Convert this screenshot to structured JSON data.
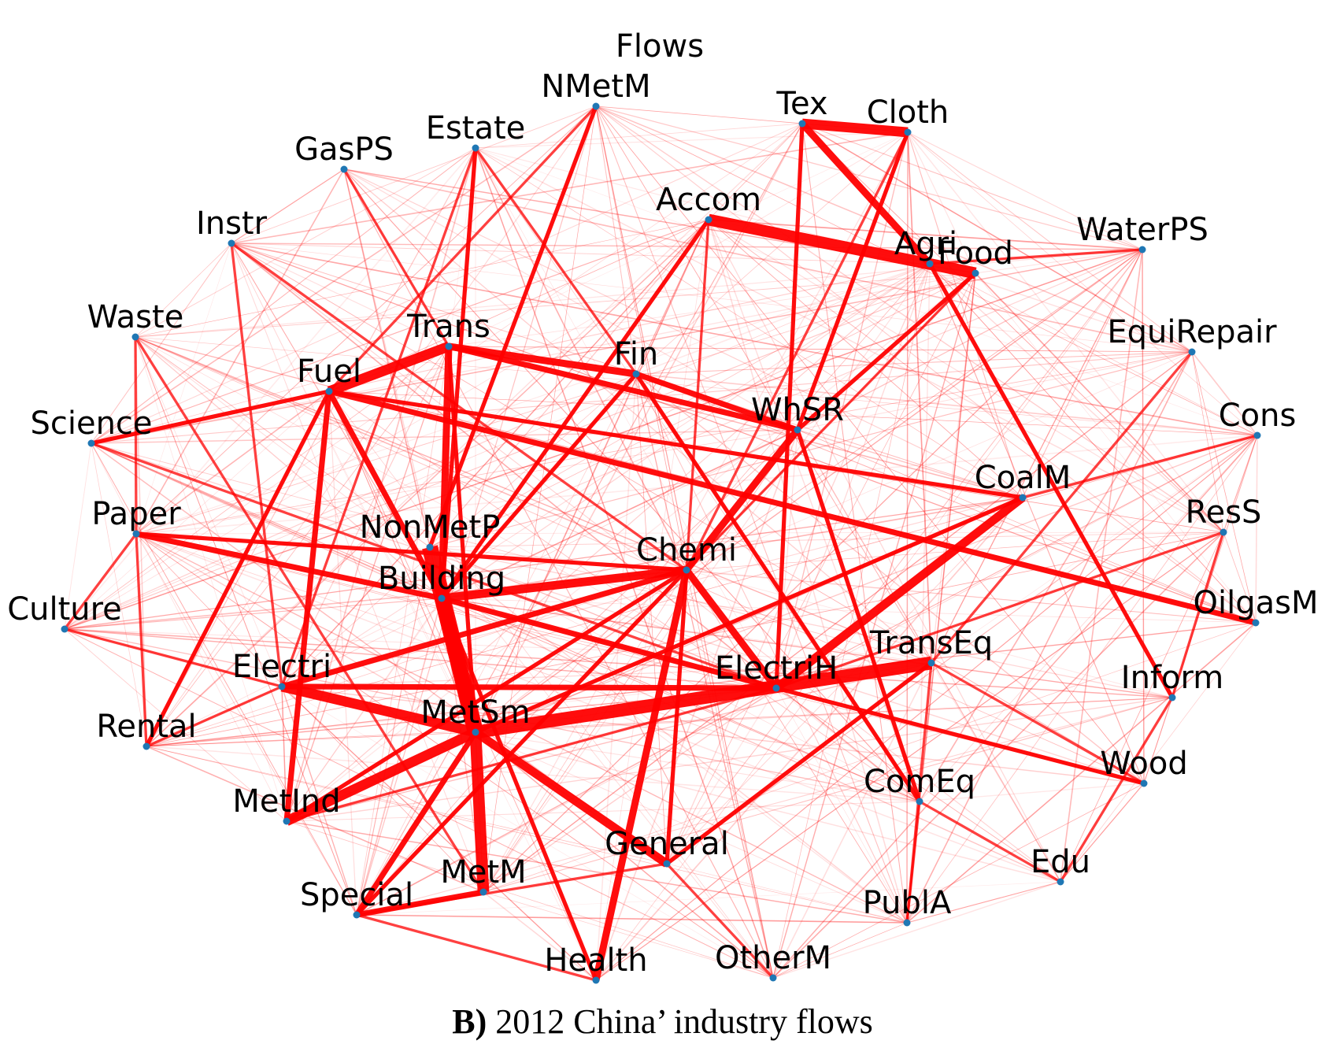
{
  "title": "Flows",
  "caption": {
    "label": "B)",
    "text": " 2012 China’ industry flows"
  },
  "colors": {
    "edge": "#ff0000",
    "node": "#1f77b4",
    "text": "#000000",
    "background": "#ffffff"
  },
  "nodes": [
    {
      "id": "NMetM",
      "label": "NMetM"
    },
    {
      "id": "Estate",
      "label": "Estate"
    },
    {
      "id": "GasPS",
      "label": "GasPS"
    },
    {
      "id": "Instr",
      "label": "Instr"
    },
    {
      "id": "Waste",
      "label": "Waste"
    },
    {
      "id": "Science",
      "label": "Science"
    },
    {
      "id": "Paper",
      "label": "Paper"
    },
    {
      "id": "Culture",
      "label": "Culture"
    },
    {
      "id": "Rental",
      "label": "Rental"
    },
    {
      "id": "MetInd",
      "label": "MetInd"
    },
    {
      "id": "Special",
      "label": "Special"
    },
    {
      "id": "MetM",
      "label": "MetM"
    },
    {
      "id": "Health",
      "label": "Health"
    },
    {
      "id": "OtherM",
      "label": "OtherM"
    },
    {
      "id": "PublA",
      "label": "PublA"
    },
    {
      "id": "Edu",
      "label": "Edu"
    },
    {
      "id": "Wood",
      "label": "Wood"
    },
    {
      "id": "Inform",
      "label": "Inform"
    },
    {
      "id": "OilgasM",
      "label": "OilgasM"
    },
    {
      "id": "ResS",
      "label": "ResS"
    },
    {
      "id": "Cons",
      "label": "Cons"
    },
    {
      "id": "EquiRepair",
      "label": "EquiRepair"
    },
    {
      "id": "WaterPS",
      "label": "WaterPS"
    },
    {
      "id": "Food",
      "label": "Food"
    },
    {
      "id": "Agri",
      "label": "Agri"
    },
    {
      "id": "Cloth",
      "label": "Cloth"
    },
    {
      "id": "Tex",
      "label": "Tex"
    },
    {
      "id": "Accom",
      "label": "Accom"
    },
    {
      "id": "Trans",
      "label": "Trans"
    },
    {
      "id": "Fuel",
      "label": "Fuel"
    },
    {
      "id": "Fin",
      "label": "Fin"
    },
    {
      "id": "WhSR",
      "label": "WhSR"
    },
    {
      "id": "CoalM",
      "label": "CoalM"
    },
    {
      "id": "NonMetP",
      "label": "NonMetP"
    },
    {
      "id": "Building",
      "label": "Building"
    },
    {
      "id": "Chemi",
      "label": "Chemi"
    },
    {
      "id": "TransEq",
      "label": "TransEq"
    },
    {
      "id": "Electri",
      "label": "Electri"
    },
    {
      "id": "ElectriH",
      "label": "ElectriH"
    },
    {
      "id": "MetSm",
      "label": "MetSm"
    },
    {
      "id": "ComEq",
      "label": "ComEq"
    },
    {
      "id": "General",
      "label": "General"
    }
  ],
  "edges": [
    {
      "source": "NonMetP",
      "target": "MetSm",
      "weight": 10
    },
    {
      "source": "Building",
      "target": "MetSm",
      "weight": 9
    },
    {
      "source": "MetSm",
      "target": "TransEq",
      "weight": 8
    },
    {
      "source": "MetSm",
      "target": "MetM",
      "weight": 7
    },
    {
      "source": "Accom",
      "target": "Food",
      "weight": 7
    },
    {
      "source": "Tex",
      "target": "Cloth",
      "weight": 6
    },
    {
      "source": "Electri",
      "target": "MetSm",
      "weight": 6
    },
    {
      "source": "MetInd",
      "target": "MetSm",
      "weight": 6
    },
    {
      "source": "Fuel",
      "target": "Trans",
      "weight": 6
    },
    {
      "source": "ElectriH",
      "target": "CoalM",
      "weight": 5
    },
    {
      "source": "MetSm",
      "target": "General",
      "weight": 5
    },
    {
      "source": "Building",
      "target": "Chemi",
      "weight": 5
    },
    {
      "source": "Chemi",
      "target": "Health",
      "weight": 4
    },
    {
      "source": "Chemi",
      "target": "ElectriH",
      "weight": 4
    },
    {
      "source": "Tex",
      "target": "Agri",
      "weight": 4
    },
    {
      "source": "Chemi",
      "target": "WhSR",
      "weight": 4
    },
    {
      "source": "Trans",
      "target": "Fin",
      "weight": 4
    },
    {
      "source": "Trans",
      "target": "Building",
      "weight": 4
    },
    {
      "source": "MetSm",
      "target": "Special",
      "weight": 3
    },
    {
      "source": "Fuel",
      "target": "OilgasM",
      "weight": 3
    },
    {
      "source": "MetM",
      "target": "Special",
      "weight": 3
    },
    {
      "source": "Electri",
      "target": "ElectriH",
      "weight": 3
    },
    {
      "source": "Electri",
      "target": "Chemi",
      "weight": 3
    },
    {
      "source": "Fin",
      "target": "WhSR",
      "weight": 3
    },
    {
      "source": "Trans",
      "target": "WhSR",
      "weight": 3
    },
    {
      "source": "Building",
      "target": "ElectriH",
      "weight": 3
    },
    {
      "source": "Fuel",
      "target": "Building",
      "weight": 3
    },
    {
      "source": "Paper",
      "target": "Building",
      "weight": 3
    },
    {
      "source": "Fuel",
      "target": "MetInd",
      "weight": 3
    },
    {
      "source": "General",
      "target": "TransEq",
      "weight": 2
    },
    {
      "source": "ElectriH",
      "target": "Wood",
      "weight": 2
    },
    {
      "source": "WhSR",
      "target": "Food",
      "weight": 2
    },
    {
      "source": "NMetM",
      "target": "NonMetP",
      "weight": 2
    },
    {
      "source": "Fuel",
      "target": "CoalM",
      "weight": 2
    },
    {
      "source": "Science",
      "target": "Fuel",
      "weight": 2
    },
    {
      "source": "Rental",
      "target": "Fuel",
      "weight": 2
    },
    {
      "source": "Fin",
      "target": "Building",
      "weight": 2
    },
    {
      "source": "Accom",
      "target": "Building",
      "weight": 2
    },
    {
      "source": "Chemi",
      "target": "MetInd",
      "weight": 2
    },
    {
      "source": "WhSR",
      "target": "ComEq",
      "weight": 2
    },
    {
      "source": "Agri",
      "target": "Inform",
      "weight": 2
    },
    {
      "source": "Chemi",
      "target": "General",
      "weight": 2
    },
    {
      "source": "Special",
      "target": "Chemi",
      "weight": 2
    },
    {
      "source": "Building",
      "target": "Health",
      "weight": 2
    },
    {
      "source": "Tex",
      "target": "ElectriH",
      "weight": 2
    },
    {
      "source": "Cloth",
      "target": "WhSR",
      "weight": 2
    },
    {
      "source": "Estate",
      "target": "Building",
      "weight": 2
    },
    {
      "source": "Trans",
      "target": "MetSm",
      "weight": 2
    },
    {
      "source": "CoalM",
      "target": "MetSm",
      "weight": 2
    },
    {
      "source": "Fin",
      "target": "ComEq",
      "weight": 2
    },
    {
      "source": "Paper",
      "target": "Chemi",
      "weight": 2
    },
    {
      "source": "Instr",
      "target": "Electri",
      "weight": 1
    },
    {
      "source": "Waste",
      "target": "Paper",
      "weight": 1
    },
    {
      "source": "Culture",
      "target": "Paper",
      "weight": 1
    },
    {
      "source": "Rental",
      "target": "Paper",
      "weight": 1
    },
    {
      "source": "PublA",
      "target": "ComEq",
      "weight": 1
    },
    {
      "source": "Edu",
      "target": "Inform",
      "weight": 1
    },
    {
      "source": "ResS",
      "target": "Inform",
      "weight": 1
    },
    {
      "source": "WaterPS",
      "target": "Agri",
      "weight": 1
    },
    {
      "source": "EquiRepair",
      "target": "TransEq",
      "weight": 1
    },
    {
      "source": "Cons",
      "target": "CoalM",
      "weight": 1
    },
    {
      "source": "OtherM",
      "target": "General",
      "weight": 1
    },
    {
      "source": "GasPS",
      "target": "Trans",
      "weight": 1
    },
    {
      "source": "Estate",
      "target": "Fin",
      "weight": 1
    },
    {
      "source": "Instr",
      "target": "Chemi",
      "weight": 1
    },
    {
      "source": "Waste",
      "target": "MetM",
      "weight": 1
    },
    {
      "source": "Science",
      "target": "ElectriH",
      "weight": 1
    },
    {
      "source": "Culture",
      "target": "Electri",
      "weight": 1
    },
    {
      "source": "Rental",
      "target": "Electri",
      "weight": 1
    },
    {
      "source": "Health",
      "target": "Special",
      "weight": 1
    },
    {
      "source": "PublA",
      "target": "TransEq",
      "weight": 1
    },
    {
      "source": "Edu",
      "target": "ComEq",
      "weight": 1
    },
    {
      "source": "Wood",
      "target": "TransEq",
      "weight": 1
    },
    {
      "source": "ResS",
      "target": "ElectriH",
      "weight": 1
    },
    {
      "source": "NMetM",
      "target": "Fuel",
      "weight": 1
    },
    {
      "source": "Accom",
      "target": "Chemi",
      "weight": 1
    },
    {
      "source": "Cloth",
      "target": "Chemi",
      "weight": 1
    },
    {
      "source": "Food",
      "target": "Chemi",
      "weight": 1
    },
    {
      "source": "Estate",
      "target": "Electri",
      "weight": 1
    },
    {
      "source": "MetInd",
      "target": "ElectriH",
      "weight": 1
    },
    {
      "source": "Special",
      "target": "General",
      "weight": 1
    }
  ]
}
